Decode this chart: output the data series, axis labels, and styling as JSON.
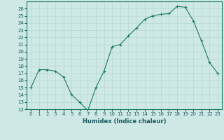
{
  "xlabel": "Humidex (Indice chaleur)",
  "x": [
    0,
    1,
    2,
    3,
    4,
    5,
    6,
    7,
    8,
    9,
    10,
    11,
    12,
    13,
    14,
    15,
    16,
    17,
    18,
    19,
    20,
    21,
    22,
    23
  ],
  "y": [
    15,
    17.5,
    17.5,
    17.3,
    16.5,
    14.0,
    13.0,
    11.8,
    15.0,
    17.3,
    20.7,
    21.0,
    22.2,
    23.3,
    24.5,
    25.0,
    25.2,
    25.3,
    26.3,
    26.2,
    24.3,
    21.5,
    18.5,
    17.0
  ],
  "line_color": "#1a7a5e",
  "marker": "+",
  "bg_color": "#cde8e5",
  "grid_color": "#b8d8d5",
  "tick_color": "#1a5a5e",
  "ylim": [
    12,
    27
  ],
  "xlim": [
    -0.5,
    23.5
  ],
  "yticks": [
    12,
    13,
    14,
    15,
    16,
    17,
    18,
    19,
    20,
    21,
    22,
    23,
    24,
    25,
    26
  ],
  "label_color": "#1a5a5e",
  "spine_color": "#1a7a5e",
  "tick_fontsize": 5.0,
  "xlabel_fontsize": 6.0
}
